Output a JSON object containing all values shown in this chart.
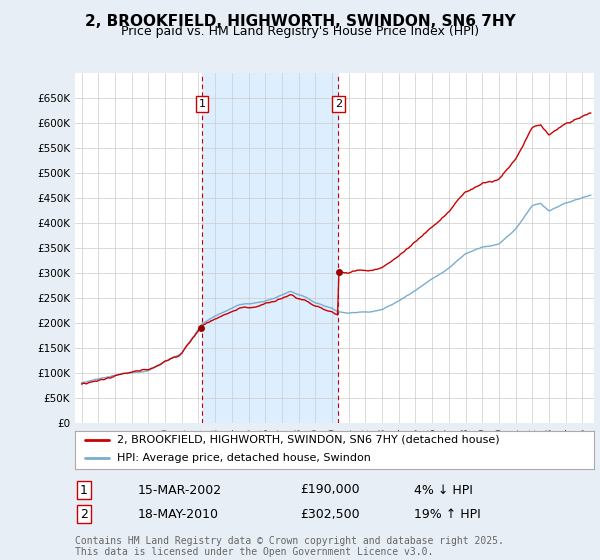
{
  "title": "2, BROOKFIELD, HIGHWORTH, SWINDON, SN6 7HY",
  "subtitle": "Price paid vs. HM Land Registry's House Price Index (HPI)",
  "ylim": [
    0,
    700000
  ],
  "yticks": [
    0,
    50000,
    100000,
    150000,
    200000,
    250000,
    300000,
    350000,
    400000,
    450000,
    500000,
    550000,
    600000,
    650000
  ],
  "ytick_labels": [
    "£0",
    "£50K",
    "£100K",
    "£150K",
    "£200K",
    "£250K",
    "£300K",
    "£350K",
    "£400K",
    "£450K",
    "£500K",
    "£550K",
    "£600K",
    "£650K"
  ],
  "marker1_year": 2002.2,
  "marker2_year": 2010.38,
  "marker1_label": "1",
  "marker2_label": "2",
  "sale1_date": "15-MAR-2002",
  "sale1_price": "£190,000",
  "sale1_hpi": "4% ↓ HPI",
  "sale2_date": "18-MAY-2010",
  "sale2_price": "£302,500",
  "sale2_hpi": "19% ↑ HPI",
  "line_color_property": "#cc0000",
  "line_color_hpi": "#7aadcf",
  "marker_color": "#990000",
  "vline_color": "#cc0000",
  "grid_color": "#cccccc",
  "background_color": "#e8eef5",
  "plot_bg_color": "#ffffff",
  "fill_color": "#ddeeff",
  "legend_label_property": "2, BROOKFIELD, HIGHWORTH, SWINDON, SN6 7HY (detached house)",
  "legend_label_hpi": "HPI: Average price, detached house, Swindon",
  "footer": "Contains HM Land Registry data © Crown copyright and database right 2025.\nThis data is licensed under the Open Government Licence v3.0.",
  "title_fontsize": 11,
  "subtitle_fontsize": 9,
  "tick_fontsize": 7.5,
  "legend_fontsize": 8,
  "footer_fontsize": 7,
  "sale_info_fontsize": 9
}
